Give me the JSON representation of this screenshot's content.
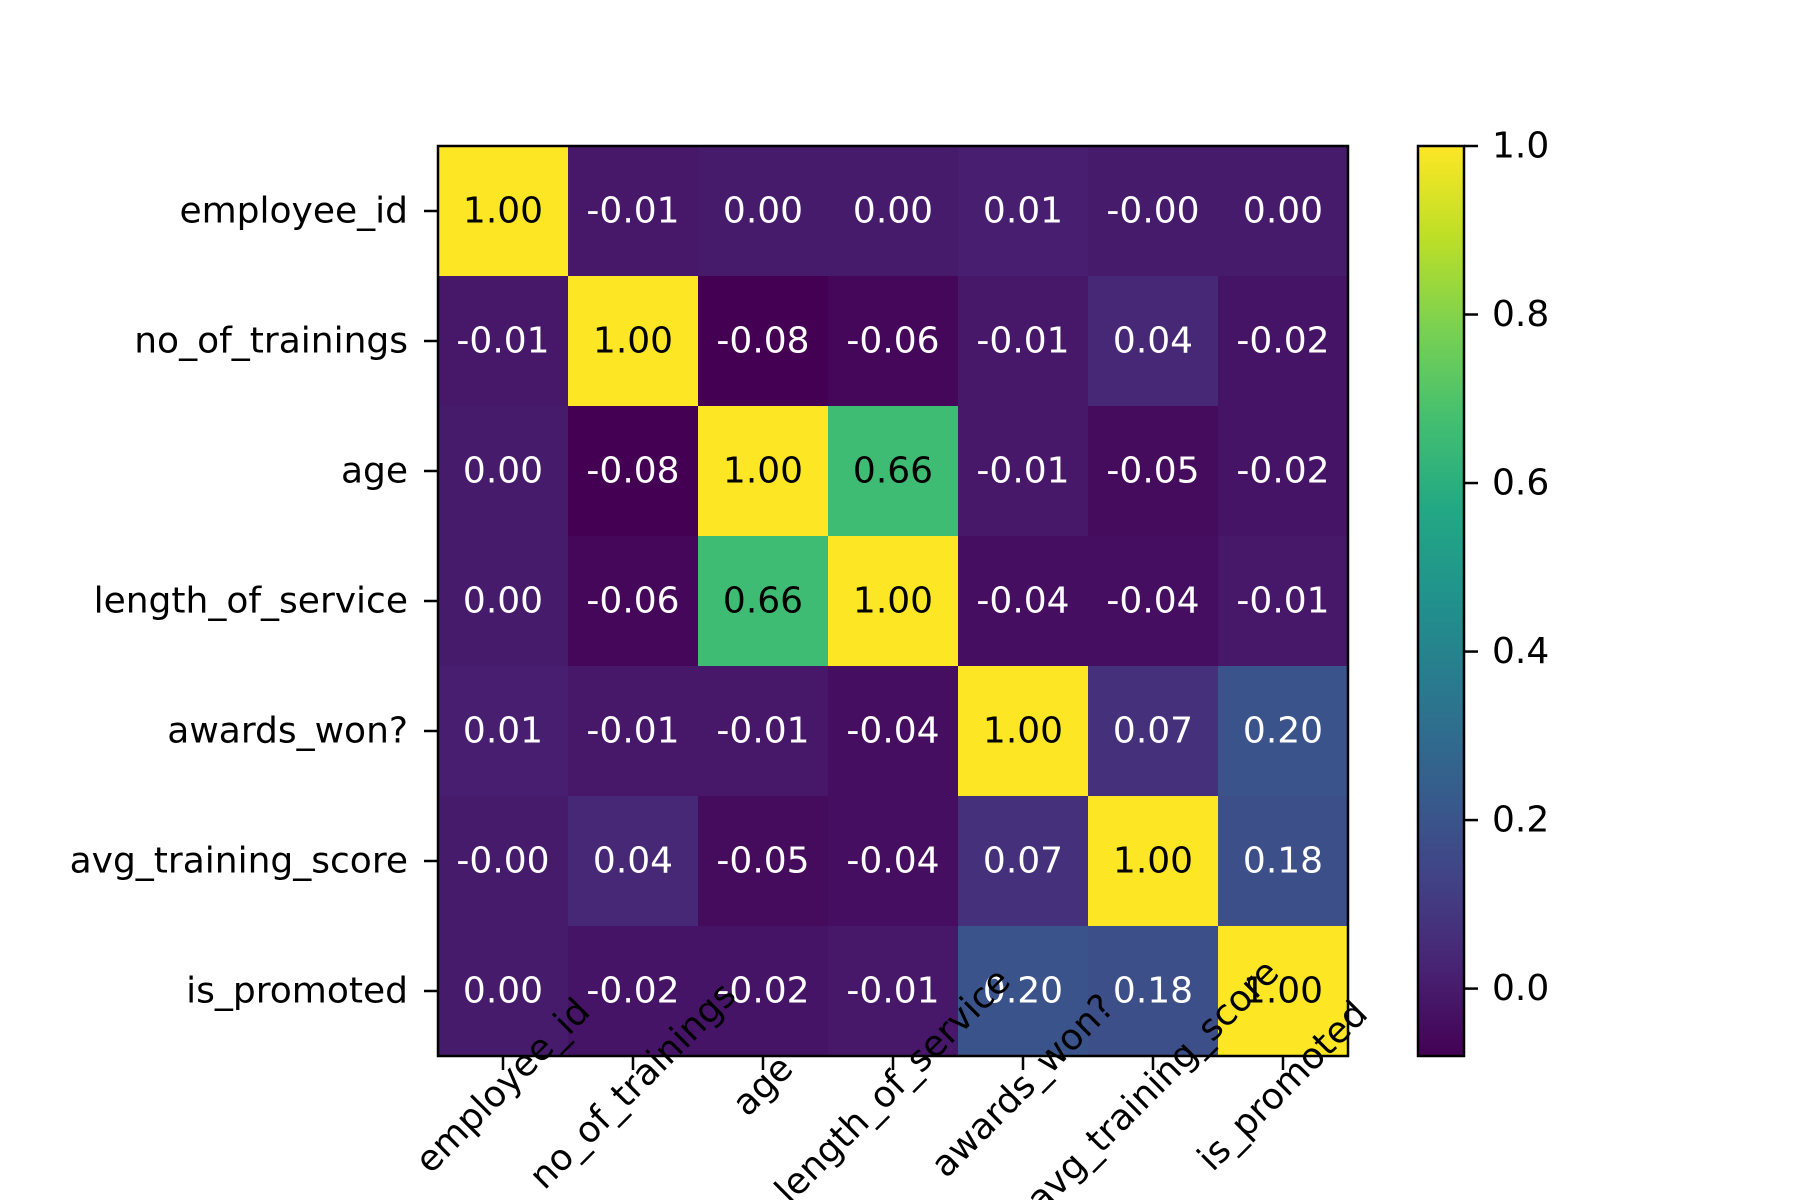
{
  "chart_data": {
    "type": "heatmap",
    "title": "",
    "xlabel": "",
    "ylabel": "",
    "labels": [
      "employee_id",
      "no_of_trainings",
      "age",
      "length_of_service",
      "awards_won?",
      "avg_training_score",
      "is_promoted"
    ],
    "matrix": [
      [
        1.0,
        -0.01,
        0.0,
        0.0,
        0.01,
        -0.0,
        0.0
      ],
      [
        -0.01,
        1.0,
        -0.08,
        -0.06,
        -0.01,
        0.04,
        -0.02
      ],
      [
        0.0,
        -0.08,
        1.0,
        0.66,
        -0.01,
        -0.05,
        -0.02
      ],
      [
        0.0,
        -0.06,
        0.66,
        1.0,
        -0.04,
        -0.04,
        -0.01
      ],
      [
        0.01,
        -0.01,
        -0.01,
        -0.04,
        1.0,
        0.07,
        0.2
      ],
      [
        -0.0,
        0.04,
        -0.05,
        -0.04,
        0.07,
        1.0,
        0.18
      ],
      [
        0.0,
        -0.02,
        -0.02,
        -0.01,
        0.2,
        0.18,
        1.0
      ]
    ],
    "value_format": "0.00",
    "colormap": "viridis",
    "colorbar": {
      "range": [
        -0.08,
        1.0
      ],
      "ticks": [
        0.0,
        0.2,
        0.4,
        0.6,
        0.8,
        1.0
      ],
      "tick_labels": [
        "0.0",
        "0.2",
        "0.4",
        "0.6",
        "0.8",
        "1.0"
      ],
      "placement": "right"
    },
    "x_tick_rotation_deg": 45,
    "grid": false
  }
}
